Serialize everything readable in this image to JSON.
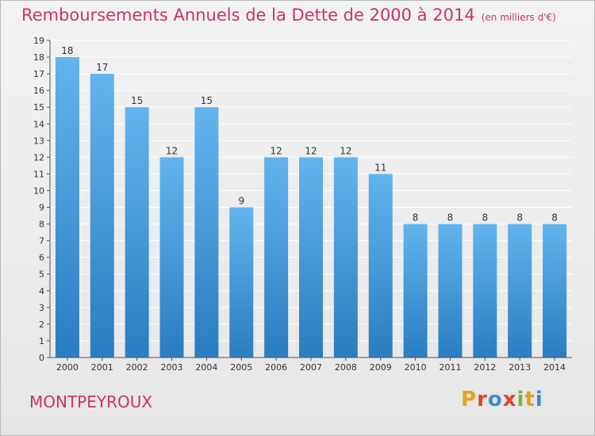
{
  "header": {
    "title": "Remboursements Annuels de la Dette de 2000 à 2014",
    "unit": "(en milliers d'€)"
  },
  "footer": {
    "city": "MONTPEYROUX",
    "brand": "Proxiti"
  },
  "colors": {
    "title": "#c8336b",
    "bar_top": "#62b4ee",
    "bar_bottom": "#2a7dc0",
    "axis": "#555555",
    "grid": "#ffffff",
    "brand_letters": [
      "#e5a11b",
      "#e04527",
      "#3a8ed5",
      "#e04527",
      "#7ab33d",
      "#e5a11b",
      "#3a8ed5"
    ]
  },
  "chart_data": {
    "type": "bar",
    "title": "Remboursements Annuels de la Dette de 2000 à 2014",
    "unit": "(en milliers d'€)",
    "categories": [
      "2000",
      "2001",
      "2002",
      "2003",
      "2004",
      "2005",
      "2006",
      "2007",
      "2008",
      "2009",
      "2010",
      "2011",
      "2012",
      "2013",
      "2014"
    ],
    "values": [
      18,
      17,
      15,
      12,
      15,
      9,
      12,
      12,
      12,
      11,
      8,
      8,
      8,
      8,
      8
    ],
    "ylim": [
      0,
      19
    ],
    "yticks": [
      0,
      1,
      2,
      3,
      4,
      5,
      6,
      7,
      8,
      9,
      10,
      11,
      12,
      13,
      14,
      15,
      16,
      17,
      18,
      19
    ],
    "grid": true,
    "data_labels": true
  }
}
